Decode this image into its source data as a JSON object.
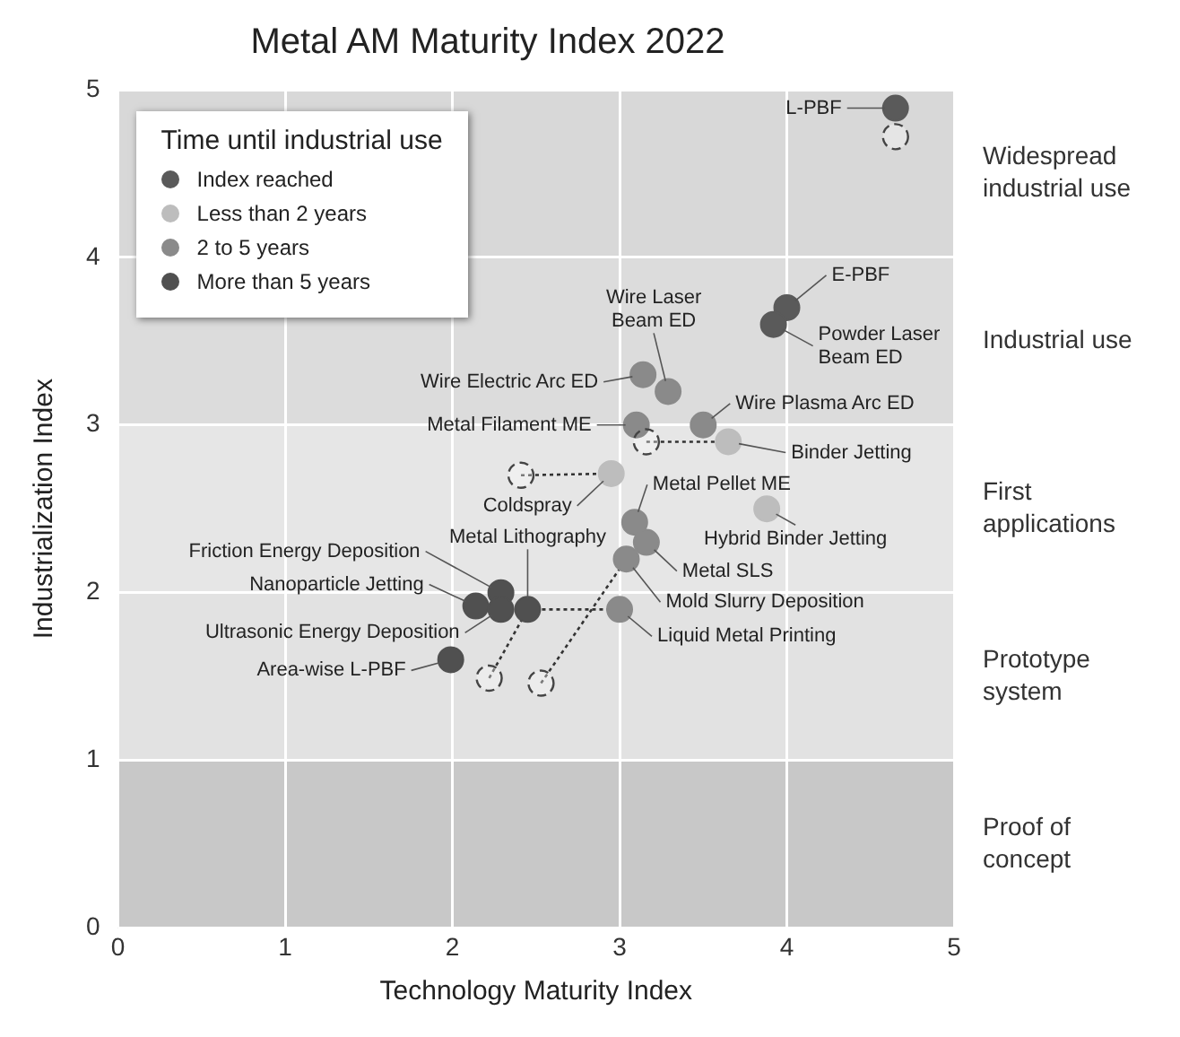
{
  "chart_data": {
    "type": "scatter",
    "title": "Metal AM Maturity Index 2022",
    "xlabel": "Technology Maturity Index",
    "ylabel": "Industrialization Index",
    "legend_title": "Time until industrial use",
    "xlim": [
      0,
      5
    ],
    "xticks": [
      0,
      1,
      2,
      3,
      4,
      5
    ],
    "ylim": [
      0,
      5
    ],
    "yticks": [
      0,
      1,
      2,
      3,
      4,
      5
    ],
    "grid": true,
    "legend": "top left",
    "series": [
      {
        "name": "Index reached",
        "color": "#5a5a5a",
        "x": [
          4.65,
          4.0,
          3.92
        ],
        "values": [
          4.89,
          3.7,
          3.6
        ]
      },
      {
        "name": "Less than 2 years",
        "color": "#bdbdbd",
        "x": [
          3.65,
          2.95,
          3.88
        ],
        "values": [
          2.9,
          2.71,
          2.5
        ]
      },
      {
        "name": "2 to 5 years",
        "color": "#8a8a8a",
        "x": [
          3.29,
          3.14,
          3.1,
          3.5,
          3.09,
          3.16,
          3.04,
          3.0
        ],
        "values": [
          3.2,
          3.3,
          3.0,
          3.0,
          2.42,
          2.3,
          2.2,
          1.9
        ]
      },
      {
        "name": "More than 5 years",
        "color": "#505050",
        "x": [
          2.45,
          2.29,
          2.14,
          2.29,
          1.99
        ],
        "values": [
          1.9,
          2.0,
          1.92,
          1.9,
          1.6
        ]
      },
      {
        "type": "scatter",
        "color": "#444444",
        "line_style": "dashed",
        "x": [
          4.65,
          3.16,
          2.41,
          2.22,
          2.53
        ],
        "values": [
          4.72,
          2.9,
          2.7,
          1.49,
          1.46
        ]
      },
      {
        "type": "line",
        "color": "#333333",
        "line_style": "dotted",
        "x": [
          3.16,
          3.65
        ],
        "values": [
          2.9,
          2.9
        ]
      },
      {
        "type": "line",
        "color": "#333333",
        "line_style": "dotted",
        "x": [
          2.41,
          2.95
        ],
        "values": [
          2.7,
          2.71
        ]
      },
      {
        "type": "line",
        "color": "#333333",
        "line_style": "dotted",
        "x": [
          2.22,
          2.45
        ],
        "values": [
          1.49,
          1.9
        ]
      },
      {
        "type": "line",
        "color": "#333333",
        "line_style": "dotted",
        "x": [
          2.53,
          3.04
        ],
        "values": [
          1.46,
          2.2
        ]
      },
      {
        "type": "line",
        "color": "#333333",
        "line_style": "dotted",
        "x": [
          2.45,
          3.0
        ],
        "values": [
          1.9,
          1.9
        ]
      }
    ],
    "bands": [
      {
        "axis": "y",
        "from": 4,
        "to": 5,
        "label": "Widespread industrial use",
        "color": "#d8d8d8"
      },
      {
        "axis": "y",
        "from": 3,
        "to": 4,
        "label": "Industrial use",
        "color": "#dcdcdc"
      },
      {
        "axis": "y",
        "from": 2,
        "to": 3,
        "label": "First applications",
        "color": "#e6e6e6"
      },
      {
        "axis": "y",
        "from": 1,
        "to": 2,
        "label": "Prototype system",
        "color": "#e2e2e2"
      },
      {
        "axis": "y",
        "from": 0,
        "to": 1,
        "label": "Proof of concept",
        "color": "#c8c8c8"
      }
    ],
    "annotations": [
      {
        "text": "L-PBF",
        "x": 4.65,
        "y": 4.89
      },
      {
        "text": "E-PBF",
        "x": 4.0,
        "y": 3.7
      },
      {
        "text": "Powder Laser Beam ED",
        "x": 3.92,
        "y": 3.6
      },
      {
        "text": "Wire Laser Beam ED",
        "x": 3.29,
        "y": 3.2
      },
      {
        "text": "Wire Electric Arc ED",
        "x": 3.14,
        "y": 3.3
      },
      {
        "text": "Metal Filament ME",
        "x": 3.1,
        "y": 3.0
      },
      {
        "text": "Wire Plasma Arc ED",
        "x": 3.5,
        "y": 3.0
      },
      {
        "text": "Binder Jetting",
        "x": 3.65,
        "y": 2.9
      },
      {
        "text": "Coldspray",
        "x": 2.95,
        "y": 2.71
      },
      {
        "text": "Metal Pellet ME",
        "x": 3.09,
        "y": 2.42
      },
      {
        "text": "Hybrid Binder Jetting",
        "x": 3.88,
        "y": 2.5
      },
      {
        "text": "Metal SLS",
        "x": 3.16,
        "y": 2.3
      },
      {
        "text": "Mold Slurry Deposition",
        "x": 3.04,
        "y": 2.2
      },
      {
        "text": "Liquid Metal Printing",
        "x": 3.0,
        "y": 1.9
      },
      {
        "text": "Metal Lithography",
        "x": 2.45,
        "y": 1.9
      },
      {
        "text": "Friction Energy Deposition",
        "x": 2.29,
        "y": 2.0
      },
      {
        "text": "Nanoparticle Jetting",
        "x": 2.14,
        "y": 1.92
      },
      {
        "text": "Ultrasonic Energy Deposition",
        "x": 2.29,
        "y": 1.9
      },
      {
        "text": "Area-wise L-PBF",
        "x": 1.99,
        "y": 1.6
      }
    ]
  }
}
